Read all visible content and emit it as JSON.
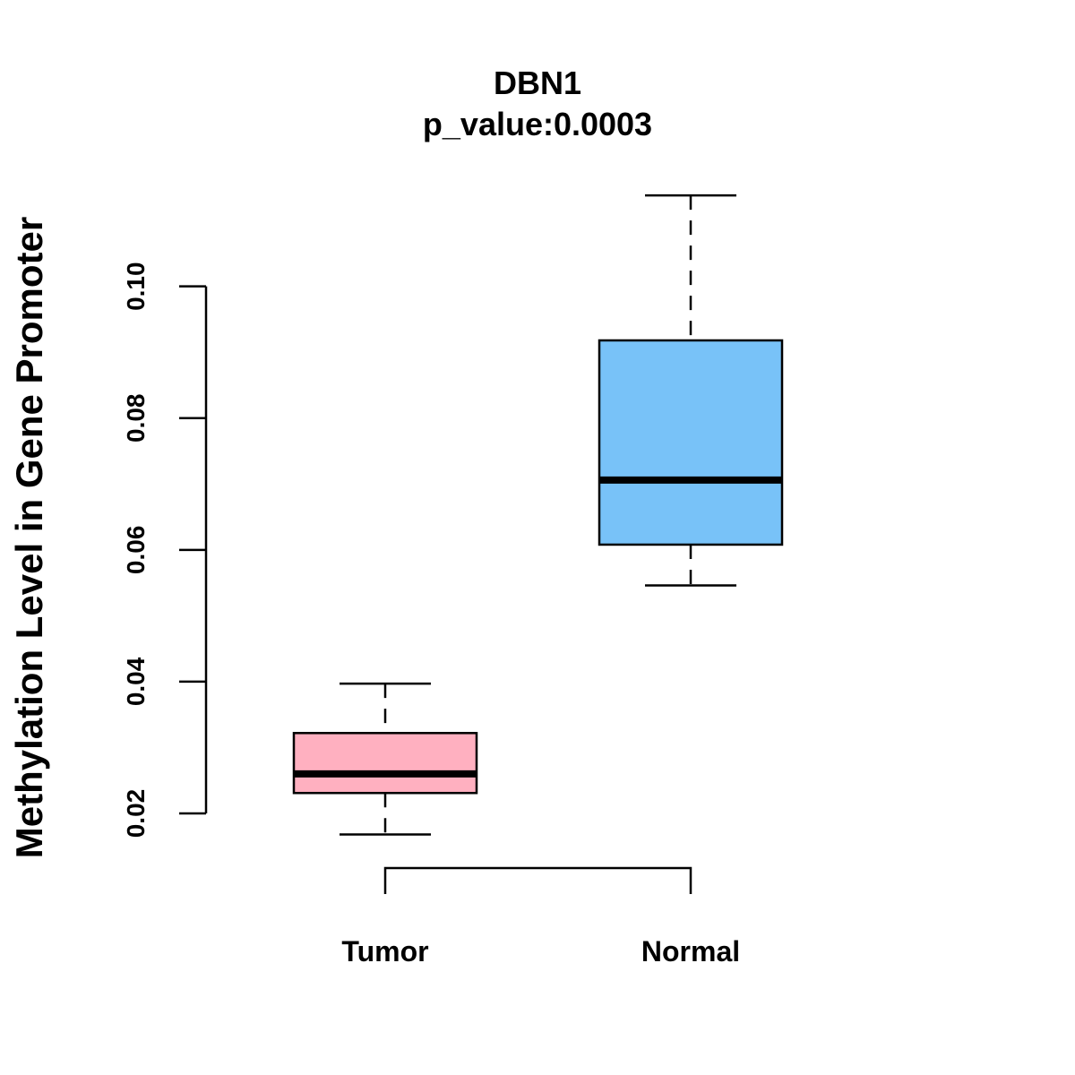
{
  "chart_data": {
    "type": "box",
    "title": "DBN1",
    "subtitle": "p_value:0.0003",
    "xlabel": "",
    "ylabel": "Methylation Level in Gene Promoter",
    "ylim": [
      0.0079,
      0.116
    ],
    "yticks": [
      "0.02",
      "0.04",
      "0.06",
      "0.08",
      "0.10"
    ],
    "ytick_values": [
      0.02,
      0.04,
      0.06,
      0.08,
      0.1
    ],
    "categories": [
      "Tumor",
      "Normal"
    ],
    "series": [
      {
        "name": "Tumor",
        "color": "#FFB0C0",
        "whisker_low": 0.0168,
        "q1": 0.0231,
        "median": 0.026,
        "q3": 0.0322,
        "whisker_high": 0.0397
      },
      {
        "name": "Normal",
        "color": "#78C2F8",
        "whisker_low": 0.0546,
        "q1": 0.0608,
        "median": 0.0706,
        "q3": 0.0918,
        "whisker_high": 0.1138
      }
    ],
    "bracket": {
      "from": "Tumor",
      "to": "Normal"
    },
    "grid": false,
    "legend": "none"
  }
}
